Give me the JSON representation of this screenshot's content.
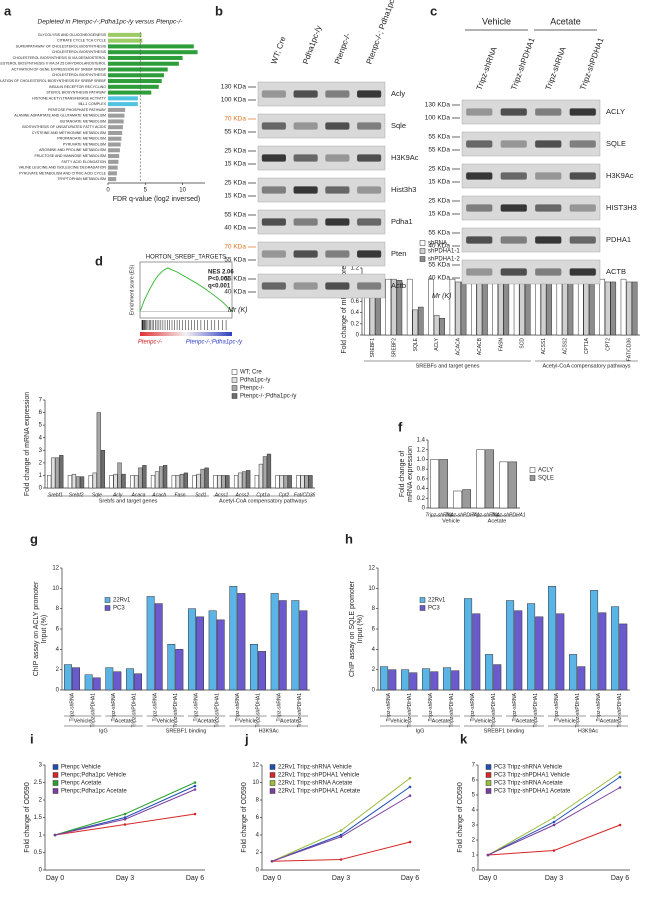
{
  "chart_data": [
    {
      "type": "barh",
      "panel": "a",
      "title": "Depleted in Ptenpc-/-;Pdha1pc-/y versus Ptenpc-/-",
      "categories": [
        "GLYCOLYSIS AND GLUCONEOGENESIS",
        "CITRATE CYCLE TCA CYCLE",
        "SUPERPATHWAY OF CHOLESTEROL BIOSYNTHESIS",
        "CHOLESTEROL BIOSYNTHESIS",
        "CHOLESTEROL BIOSYNTHESIS III VIA DESMOSTEROL",
        "CHOLESTEROL BIOSYNTHESIS II VIA 24 25 DIHYDROLANOSTEROL",
        "ACTIVATION OF GENE EXPRESSION BY SREBF SREBP",
        "CHOLESTEROL BIOSYNTHESIS",
        "REGULATION OF CHOLESTEROL BIOSYNTHESIS BY SREBP SREBF",
        "INSULIN RECEPTOR RECYCLING",
        "STEROL BIOSYNTHESIS PATHWAY",
        "HISTONE ACETYLTRANSFERASE ACTIVITY",
        "MLL1 COMPLEX",
        "PENTOSE PHOSPHATE PATHWAY",
        "ALANINE ASPARTATE AND GLUTAMATE METABOLISM",
        "BUTANOATE METABOLISM",
        "BIOSYNTHESIS OF UNSATURATED FATTY ACIDS",
        "CYSTEINE AND METHIONINE METABOLISM",
        "PROPANOATE METABOLISM",
        "PYRUVATE METABOLISM",
        "ARGININE AND PROLINE METABOLISM",
        "FRUCTOSE AND MANNOSE METABOLISM",
        "FATTY ACID ELONGATION",
        "VALINE LEUCINE AND ISOLEUCINE DEGRADATION",
        "PYRUVATE METABOLISM AND CITRIC ACID CYCLE",
        "TRYPTOPHAN METABOLISM"
      ],
      "values": [
        4.5,
        4.6,
        11.5,
        12,
        10,
        9.5,
        8,
        7.5,
        7.2,
        6.8,
        5.8,
        4,
        4,
        2.3,
        2.2,
        2.1,
        2,
        1.9,
        1.8,
        1.7,
        1.6,
        1.5,
        1.4,
        1.3,
        1.2,
        1.1
      ],
      "colors": [
        "#9ccc65",
        "#9ccc65",
        "#2e9e3a",
        "#2e9e3a",
        "#2e9e3a",
        "#2e9e3a",
        "#2e9e3a",
        "#2e9e3a",
        "#2e9e3a",
        "#2e9e3a",
        "#2e9e3a",
        "#4fc3e0",
        "#4fc3e0",
        "#9e9e9e",
        "#9e9e9e",
        "#9e9e9e",
        "#9e9e9e",
        "#9e9e9e",
        "#9e9e9e",
        "#9e9e9e",
        "#9e9e9e",
        "#9e9e9e",
        "#9e9e9e",
        "#9e9e9e",
        "#9e9e9e",
        "#9e9e9e"
      ],
      "xlim": [
        0,
        13
      ],
      "xticks": [
        0,
        5,
        10
      ],
      "threshold": 4.32,
      "xlabel": "FDR q-value (log2 inversed)"
    },
    {
      "type": "line",
      "panel": "d",
      "title": "HORTON_SREBF_TARGETS",
      "annotations": [
        "NES 2.06",
        "P<0.001",
        "q<0.001"
      ],
      "ylabel": "Enrichment score (ES)",
      "phenotypes": [
        "Ptenpc-/-",
        "Ptenpc-/-;Pdha1pc-/y"
      ],
      "x": [
        0,
        5,
        10,
        15,
        20,
        25,
        30,
        35,
        40,
        50,
        60,
        70,
        80,
        90,
        100
      ],
      "series": [
        {
          "color": "#2db52d",
          "values": [
            0,
            0.18,
            0.32,
            0.45,
            0.55,
            0.62,
            0.66,
            0.63,
            0.6,
            0.52,
            0.44,
            0.35,
            0.25,
            0.14,
            0
          ]
        }
      ],
      "xlim": [
        0,
        100
      ],
      "ylim": [
        -0.1,
        0.75
      ],
      "xticks": [],
      "yticks": []
    },
    {
      "type": "bar",
      "ylabel": "Fold change of mRNA expression",
      "groups": [
        {
          "label": "Srebfs and target genes",
          "categories": [
            "Srebf1",
            "Srebf2",
            "Sqle",
            "Acly",
            "Acaca",
            "Acacb",
            "Fasn",
            "Scd1"
          ]
        },
        {
          "label": "Acetyl-CoA compensatory pathways",
          "categories": [
            "Acss1",
            "Acss2",
            "Cpt1a",
            "Cpt2",
            "Fat/CD36"
          ]
        }
      ],
      "series": [
        {
          "name": "WT; Cre",
          "color": "#ffffff",
          "values": [
            1,
            1,
            1,
            1,
            1,
            1,
            1,
            1,
            1,
            1,
            1,
            1,
            1
          ]
        },
        {
          "name": "Pdha1pc-/y",
          "color": "#e0e0e0",
          "values": [
            2.4,
            1.1,
            1.2,
            1.1,
            1,
            1.3,
            1,
            1.1,
            1,
            1.2,
            1.9,
            1,
            1
          ]
        },
        {
          "name": "Ptenpc-/-",
          "color": "#a8a8a8",
          "values": [
            2.4,
            0.9,
            6,
            2,
            1.6,
            1.7,
            1.1,
            1.5,
            1,
            1.3,
            2.5,
            1,
            1
          ]
        },
        {
          "name": "Ptenpc-/-;Pdha1pc-/y",
          "color": "#6e6e6e",
          "values": [
            2.6,
            0.9,
            3,
            1.1,
            1.8,
            1.8,
            1.2,
            1.6,
            1,
            1.4,
            2.7,
            1,
            1
          ]
        }
      ],
      "ylim": [
        0,
        7
      ],
      "yticks": [
        0,
        1,
        2,
        3,
        4,
        5,
        6,
        7
      ]
    },
    {
      "type": "bar",
      "panel": "e",
      "ylabel": "Fold change of mRNA expression",
      "groups": [
        {
          "label": "SREBFs and target genes",
          "categories": [
            "SREBF1",
            "SREBF2",
            "SQLE",
            "ACLY",
            "ACACA",
            "ACACB",
            "FASN",
            "SCD"
          ]
        },
        {
          "label": "Acetyl-CoA compensatory pathways",
          "categories": [
            "ACSS1",
            "ACSS2",
            "CPT1A",
            "CPT2",
            "FAT/CD36"
          ]
        }
      ],
      "series": [
        {
          "name": "shRNA",
          "color": "#ffffff",
          "values": [
            1,
            1,
            1,
            1,
            1,
            1,
            1,
            1,
            1,
            1,
            1,
            1,
            1
          ]
        },
        {
          "name": "shPDHA1-1",
          "color": "#d0d0d0",
          "values": [
            0.95,
            1,
            0.45,
            0.35,
            0.95,
            0.95,
            0.95,
            0.95,
            0.95,
            0.95,
            0.95,
            0.95,
            0.95
          ]
        },
        {
          "name": "shPDHA1-2",
          "color": "#8c8c8c",
          "values": [
            0.97,
            0.98,
            0.5,
            0.3,
            0.95,
            0.93,
            0.93,
            0.96,
            0.94,
            0.93,
            0.95,
            0.95,
            0.95
          ]
        }
      ],
      "ylim": [
        0,
        1.2
      ],
      "yticks": [
        0,
        0.2,
        0.4,
        0.6,
        0.8,
        {
          "value": 1,
          "label": "1.0"
        },
        1.2
      ]
    },
    {
      "type": "bar",
      "panel": "f",
      "ylabel": [
        "Fold change of",
        "mRNA expression"
      ],
      "groups": [
        {
          "label": "Vehicle",
          "categories": [
            "Tripz-shRNA",
            "Tripz-shPDHA1"
          ]
        },
        {
          "label": "Acetate",
          "categories": [
            "Tripz-shRNA",
            "Tripz-shPDHA1"
          ]
        }
      ],
      "series": [
        {
          "name": "ACLY",
          "color": "#ffffff",
          "values": [
            1,
            0.35,
            1.2,
            0.95
          ]
        },
        {
          "name": "SQLE",
          "color": "#9a9a9a",
          "values": [
            1,
            0.38,
            1.2,
            0.95
          ]
        }
      ],
      "ylim": [
        0,
        1.4
      ],
      "yticks": [
        0,
        0.2,
        0.4,
        0.6,
        0.8,
        {
          "value": 1,
          "label": "1.0"
        },
        1.2,
        1.4
      ]
    },
    {
      "type": "bar",
      "panel": "g",
      "ylabel": [
        "ChIP assay on ACLY promoter",
        "Input (%)"
      ],
      "groups": [
        {
          "label": "IgG",
          "subgroups": [
            {
              "label": "Vehicle",
              "categories": [
                "Tripz-shRNA",
                "Tripz-shPDHA1"
              ]
            },
            {
              "label": "Acetate",
              "categories": [
                "Tripz-shRNA",
                "Tripz-shPDHA1"
              ]
            }
          ]
        },
        {
          "label": "SREBF1 binding",
          "subgroups": [
            {
              "label": "Vehicle",
              "categories": [
                "Tripz-shRNA",
                "Tripz-shPDHA1"
              ]
            },
            {
              "label": "Acetate",
              "categories": [
                "Tripz-shRNA",
                "Tripz-shPDHA1"
              ]
            }
          ]
        },
        {
          "label": "H3K9Ac",
          "subgroups": [
            {
              "label": "Vehicle",
              "categories": [
                "Tripz-shRNA",
                "Tripz-shPDHA1"
              ]
            },
            {
              "label": "Acetate",
              "categories": [
                "Tripz-shRNA",
                "Tripz-shPDHA1"
              ]
            }
          ]
        }
      ],
      "series": [
        {
          "name": "22Rv1",
          "color": "#5ab4e6",
          "values": [
            2.5,
            1.5,
            2.2,
            2.1,
            9.2,
            4.5,
            8,
            7.8,
            10.2,
            4.5,
            9.5,
            8.8
          ]
        },
        {
          "name": "PC3",
          "color": "#6a5acd",
          "values": [
            2.2,
            1.2,
            1.8,
            1.6,
            8.5,
            4,
            7.2,
            6.9,
            9.5,
            3.8,
            8.8,
            7.8
          ]
        }
      ],
      "ylim": [
        0,
        12
      ],
      "yticks": [
        0,
        2,
        4,
        6,
        8,
        10,
        12
      ]
    },
    {
      "type": "bar",
      "panel": "h",
      "ylabel": [
        "ChIP assay on SQLE promoter",
        "Input (%)"
      ],
      "groups": [
        {
          "label": "IgG",
          "subgroups": [
            {
              "label": "Vehicle",
              "categories": [
                "Tripz-shRNA",
                "Tripz-shPDHA1"
              ]
            },
            {
              "label": "Acetate",
              "categories": [
                "Tripz-shRNA",
                "Tripz-shPDHA1"
              ]
            }
          ]
        },
        {
          "label": "SREBF1 binding",
          "subgroups": [
            {
              "label": "Vehicle",
              "categories": [
                "Tripz-shRNA",
                "Tripz-shPDHA1"
              ]
            },
            {
              "label": "Acetate",
              "categories": [
                "Tripz-shRNA",
                "Tripz-shPDHA1"
              ]
            }
          ]
        },
        {
          "label": "H3K9Ac",
          "subgroups": [
            {
              "label": "Vehicle",
              "categories": [
                "Tripz-shRNA",
                "Tripz-shPDHA1"
              ]
            },
            {
              "label": "Acetate",
              "categories": [
                "Tripz-shRNA",
                "Tripz-shPDHA1"
              ]
            }
          ]
        }
      ],
      "series": [
        {
          "name": "22Rv1",
          "color": "#5ab4e6",
          "values": [
            2.3,
            2,
            2.1,
            2.2,
            9,
            3.5,
            8.8,
            8.5,
            10.2,
            3.5,
            9.8,
            8.2
          ]
        },
        {
          "name": "PC3",
          "color": "#6a5acd",
          "values": [
            2,
            1.7,
            1.8,
            1.9,
            7.5,
            2.5,
            7.8,
            7.2,
            7.5,
            2.3,
            7.6,
            6.5
          ]
        }
      ],
      "ylim": [
        0,
        12
      ],
      "yticks": [
        0,
        2,
        4,
        6,
        8,
        10,
        12
      ]
    },
    {
      "type": "line",
      "panel": "i",
      "ylabel": "Fold change of OD590",
      "categories": [
        "Day 0",
        "Day 3",
        "Day 6"
      ],
      "series": [
        {
          "name": "Ptenpc Vehicle",
          "color": "#1f4eb4",
          "values": [
            1,
            1.5,
            2.4
          ]
        },
        {
          "name": "Ptenpc;Pdha1pc Vehicle",
          "color": "#d62728",
          "values": [
            1,
            1.3,
            1.6
          ]
        },
        {
          "name": "Ptenpc Acetate",
          "color": "#2ca02c",
          "values": [
            1,
            1.6,
            2.5
          ]
        },
        {
          "name": "Ptenpc;Pdha1pc Acetate",
          "color": "#7b3fa0",
          "values": [
            1,
            1.45,
            2.3
          ]
        }
      ],
      "ylim": [
        0,
        3
      ],
      "yticks": [
        0,
        0.5,
        1,
        1.5,
        2,
        2.5,
        3
      ]
    },
    {
      "type": "line",
      "panel": "j",
      "ylabel": "Fold change of OD590",
      "categories": [
        "Day 0",
        "Day 3",
        "Day 6"
      ],
      "series": [
        {
          "name": "22Rv1 Tripz-shRNA Vehicle",
          "color": "#1f4eb4",
          "values": [
            1,
            4,
            9.5
          ]
        },
        {
          "name": "22Rv1 Tripz-shPDHA1 Vehicle",
          "color": "#d62728",
          "values": [
            1,
            1.2,
            3.2
          ]
        },
        {
          "name": "22Rv1 Tripz-shRNA Acetate",
          "color": "#9bbb3c",
          "values": [
            1,
            4.5,
            10.5
          ]
        },
        {
          "name": "22Rv1 Tripz-shPDHA1 Acetate",
          "color": "#7b3fa0",
          "values": [
            1,
            3.8,
            8.5
          ]
        }
      ],
      "ylim": [
        0,
        12
      ],
      "yticks": [
        0,
        2,
        4,
        6,
        8,
        10,
        12
      ]
    },
    {
      "type": "line",
      "panel": "k",
      "ylabel": "Fold change of OD590",
      "categories": [
        "Day 0",
        "Day 3",
        "Day 6"
      ],
      "series": [
        {
          "name": "PC3 Tripz-shRNA Vehicle",
          "color": "#1f4eb4",
          "values": [
            1,
            3.2,
            6.2
          ]
        },
        {
          "name": "PC3 Tripz-shPDHA1 Vehicle",
          "color": "#d62728",
          "values": [
            1,
            1.3,
            3
          ]
        },
        {
          "name": "PC3 Tripz-shRNA Acetate",
          "color": "#9bbb3c",
          "values": [
            1,
            3.5,
            6.5
          ]
        },
        {
          "name": "PC3 Tripz-shPDHA1 Acetate",
          "color": "#7b3fa0",
          "values": [
            1,
            3,
            5.5
          ]
        }
      ],
      "ylim": [
        0,
        7
      ],
      "yticks": [
        0,
        1,
        2,
        3,
        4,
        5,
        6,
        7
      ]
    }
  ],
  "blots": [
    {
      "panel": "b",
      "lanes": [
        "WT; Cre",
        "Pdha1pc-/y",
        "Ptenpc-/-",
        "Ptenpc-/-; Pdha1pc-/y"
      ],
      "footer": "Mr (K)",
      "rows": [
        {
          "protein": "Acly",
          "markers": [
            "130 KDa",
            "100 KDa"
          ],
          "marker_colors": [
            "#222222",
            "#222222"
          ]
        },
        {
          "protein": "Sqle",
          "markers": [
            "70 KDa",
            "55 KDa"
          ],
          "marker_colors": [
            "#e07020",
            "#222222"
          ]
        },
        {
          "protein": "H3K9Ac",
          "markers": [
            "25 KDa",
            "15 KDa"
          ],
          "marker_colors": [
            "#222222",
            "#222222"
          ]
        },
        {
          "protein": "Hist3h3",
          "markers": [
            "25 KDa",
            "15 KDa"
          ],
          "marker_colors": [
            "#222222",
            "#222222"
          ]
        },
        {
          "protein": "Pdha1",
          "markers": [
            "55 KDa",
            "40 KDa"
          ],
          "marker_colors": [
            "#222222",
            "#222222"
          ]
        },
        {
          "protein": "Pten",
          "markers": [
            "70 KDa",
            "55 KDa"
          ],
          "marker_colors": [
            "#e07020",
            "#222222"
          ]
        },
        {
          "protein": "Actb",
          "markers": [
            "55 KDa",
            "40 KDa"
          ],
          "marker_colors": [
            "#222222",
            "#222222"
          ]
        }
      ]
    },
    {
      "panel": "c",
      "conditions": [
        {
          "label": "Vehicle",
          "lanes": [
            "Tripz-shRNA",
            "Tripz-shPDHA1"
          ]
        },
        {
          "label": "Acetate",
          "lanes": [
            "Tripz-shRNA",
            "Tripz-shPDHA1"
          ]
        }
      ],
      "footer": "Mr (K)",
      "rows": [
        {
          "protein": "ACLY",
          "markers": [
            "130 KDa",
            "100 KDa"
          ],
          "marker_colors": [
            "#222222",
            "#222222"
          ]
        },
        {
          "protein": "SQLE",
          "markers": [
            "55 KDa",
            "55 KDa"
          ],
          "marker_colors": [
            "#222222",
            "#222222"
          ]
        },
        {
          "protein": "H3K9Ac",
          "markers": [
            "25 KDa",
            "15 KDa"
          ],
          "marker_colors": [
            "#222222",
            "#222222"
          ]
        },
        {
          "protein": "HIST3H3",
          "markers": [
            "25 KDa",
            "15 KDa"
          ],
          "marker_colors": [
            "#222222",
            "#222222"
          ]
        },
        {
          "protein": "PDHA1",
          "markers": [
            "55 KDa",
            "40 KDa"
          ],
          "marker_colors": [
            "#222222",
            "#222222"
          ]
        },
        {
          "protein": "ACTB",
          "markers": [
            "55 KDa",
            "40 KDa"
          ],
          "marker_colors": [
            "#222222",
            "#222222"
          ]
        }
      ]
    }
  ]
}
